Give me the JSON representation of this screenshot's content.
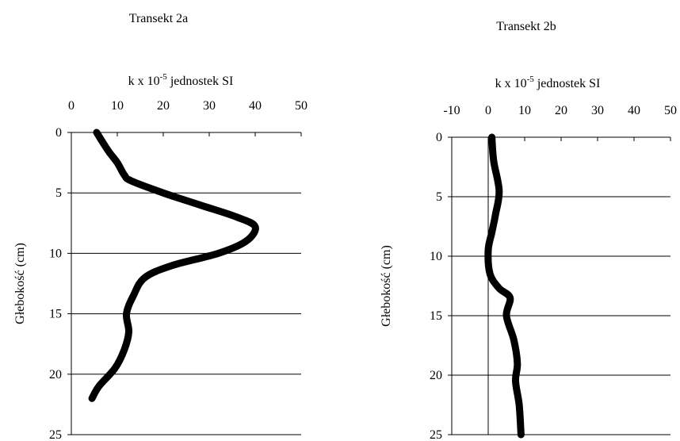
{
  "chart_data": [
    {
      "type": "line",
      "title": "Transekt 2a",
      "xlabel": "k x 10",
      "xlabel_sup": "-5",
      "xlabel_suffix": " jednostek SI",
      "ylabel": "Głebokość (cm)",
      "xlim": [
        0,
        50
      ],
      "ylim": [
        0,
        25
      ],
      "x_ticks": [
        0,
        10,
        20,
        30,
        40,
        50
      ],
      "y_ticks": [
        0,
        5,
        10,
        15,
        20,
        25
      ],
      "y_reversed": true,
      "x_axis_position": "top",
      "grid": "horizontal",
      "series": [
        {
          "points": [
            {
              "x": 5.5,
              "y": 0
            },
            {
              "x": 8,
              "y": 1.5
            },
            {
              "x": 10,
              "y": 2.5
            },
            {
              "x": 11.5,
              "y": 3.5
            },
            {
              "x": 13,
              "y": 4
            },
            {
              "x": 20,
              "y": 5
            },
            {
              "x": 28,
              "y": 6
            },
            {
              "x": 36,
              "y": 7
            },
            {
              "x": 40,
              "y": 7.8
            },
            {
              "x": 38,
              "y": 9
            },
            {
              "x": 32,
              "y": 10
            },
            {
              "x": 22,
              "y": 11
            },
            {
              "x": 16,
              "y": 12
            },
            {
              "x": 13.5,
              "y": 13.5
            },
            {
              "x": 12,
              "y": 15
            },
            {
              "x": 12.5,
              "y": 16.5
            },
            {
              "x": 11.5,
              "y": 18
            },
            {
              "x": 9.5,
              "y": 19.5
            },
            {
              "x": 6,
              "y": 21
            },
            {
              "x": 4.5,
              "y": 22
            }
          ]
        }
      ]
    },
    {
      "type": "line",
      "title": "Transekt 2b",
      "xlabel": "k x 10",
      "xlabel_sup": "-5",
      "xlabel_suffix": " jednostek SI",
      "ylabel": "Głebokość (cm)",
      "xlim": [
        -10,
        50
      ],
      "ylim": [
        0,
        25
      ],
      "x_ticks": [
        -10,
        0,
        10,
        20,
        30,
        40,
        50
      ],
      "y_ticks": [
        0,
        5,
        10,
        15,
        20,
        25
      ],
      "y_reversed": true,
      "x_axis_position": "top",
      "grid": "horizontal",
      "series": [
        {
          "points": [
            {
              "x": 1,
              "y": 0
            },
            {
              "x": 1.5,
              "y": 2
            },
            {
              "x": 3,
              "y": 4.5
            },
            {
              "x": 2,
              "y": 6.5
            },
            {
              "x": 1,
              "y": 8
            },
            {
              "x": 0,
              "y": 9.5
            },
            {
              "x": 0.5,
              "y": 11.5
            },
            {
              "x": 3,
              "y": 12.7
            },
            {
              "x": 6,
              "y": 13.5
            },
            {
              "x": 5,
              "y": 15
            },
            {
              "x": 7,
              "y": 17
            },
            {
              "x": 8,
              "y": 19
            },
            {
              "x": 7.5,
              "y": 20.5
            },
            {
              "x": 8.5,
              "y": 22.5
            },
            {
              "x": 9,
              "y": 25
            }
          ]
        }
      ]
    }
  ]
}
